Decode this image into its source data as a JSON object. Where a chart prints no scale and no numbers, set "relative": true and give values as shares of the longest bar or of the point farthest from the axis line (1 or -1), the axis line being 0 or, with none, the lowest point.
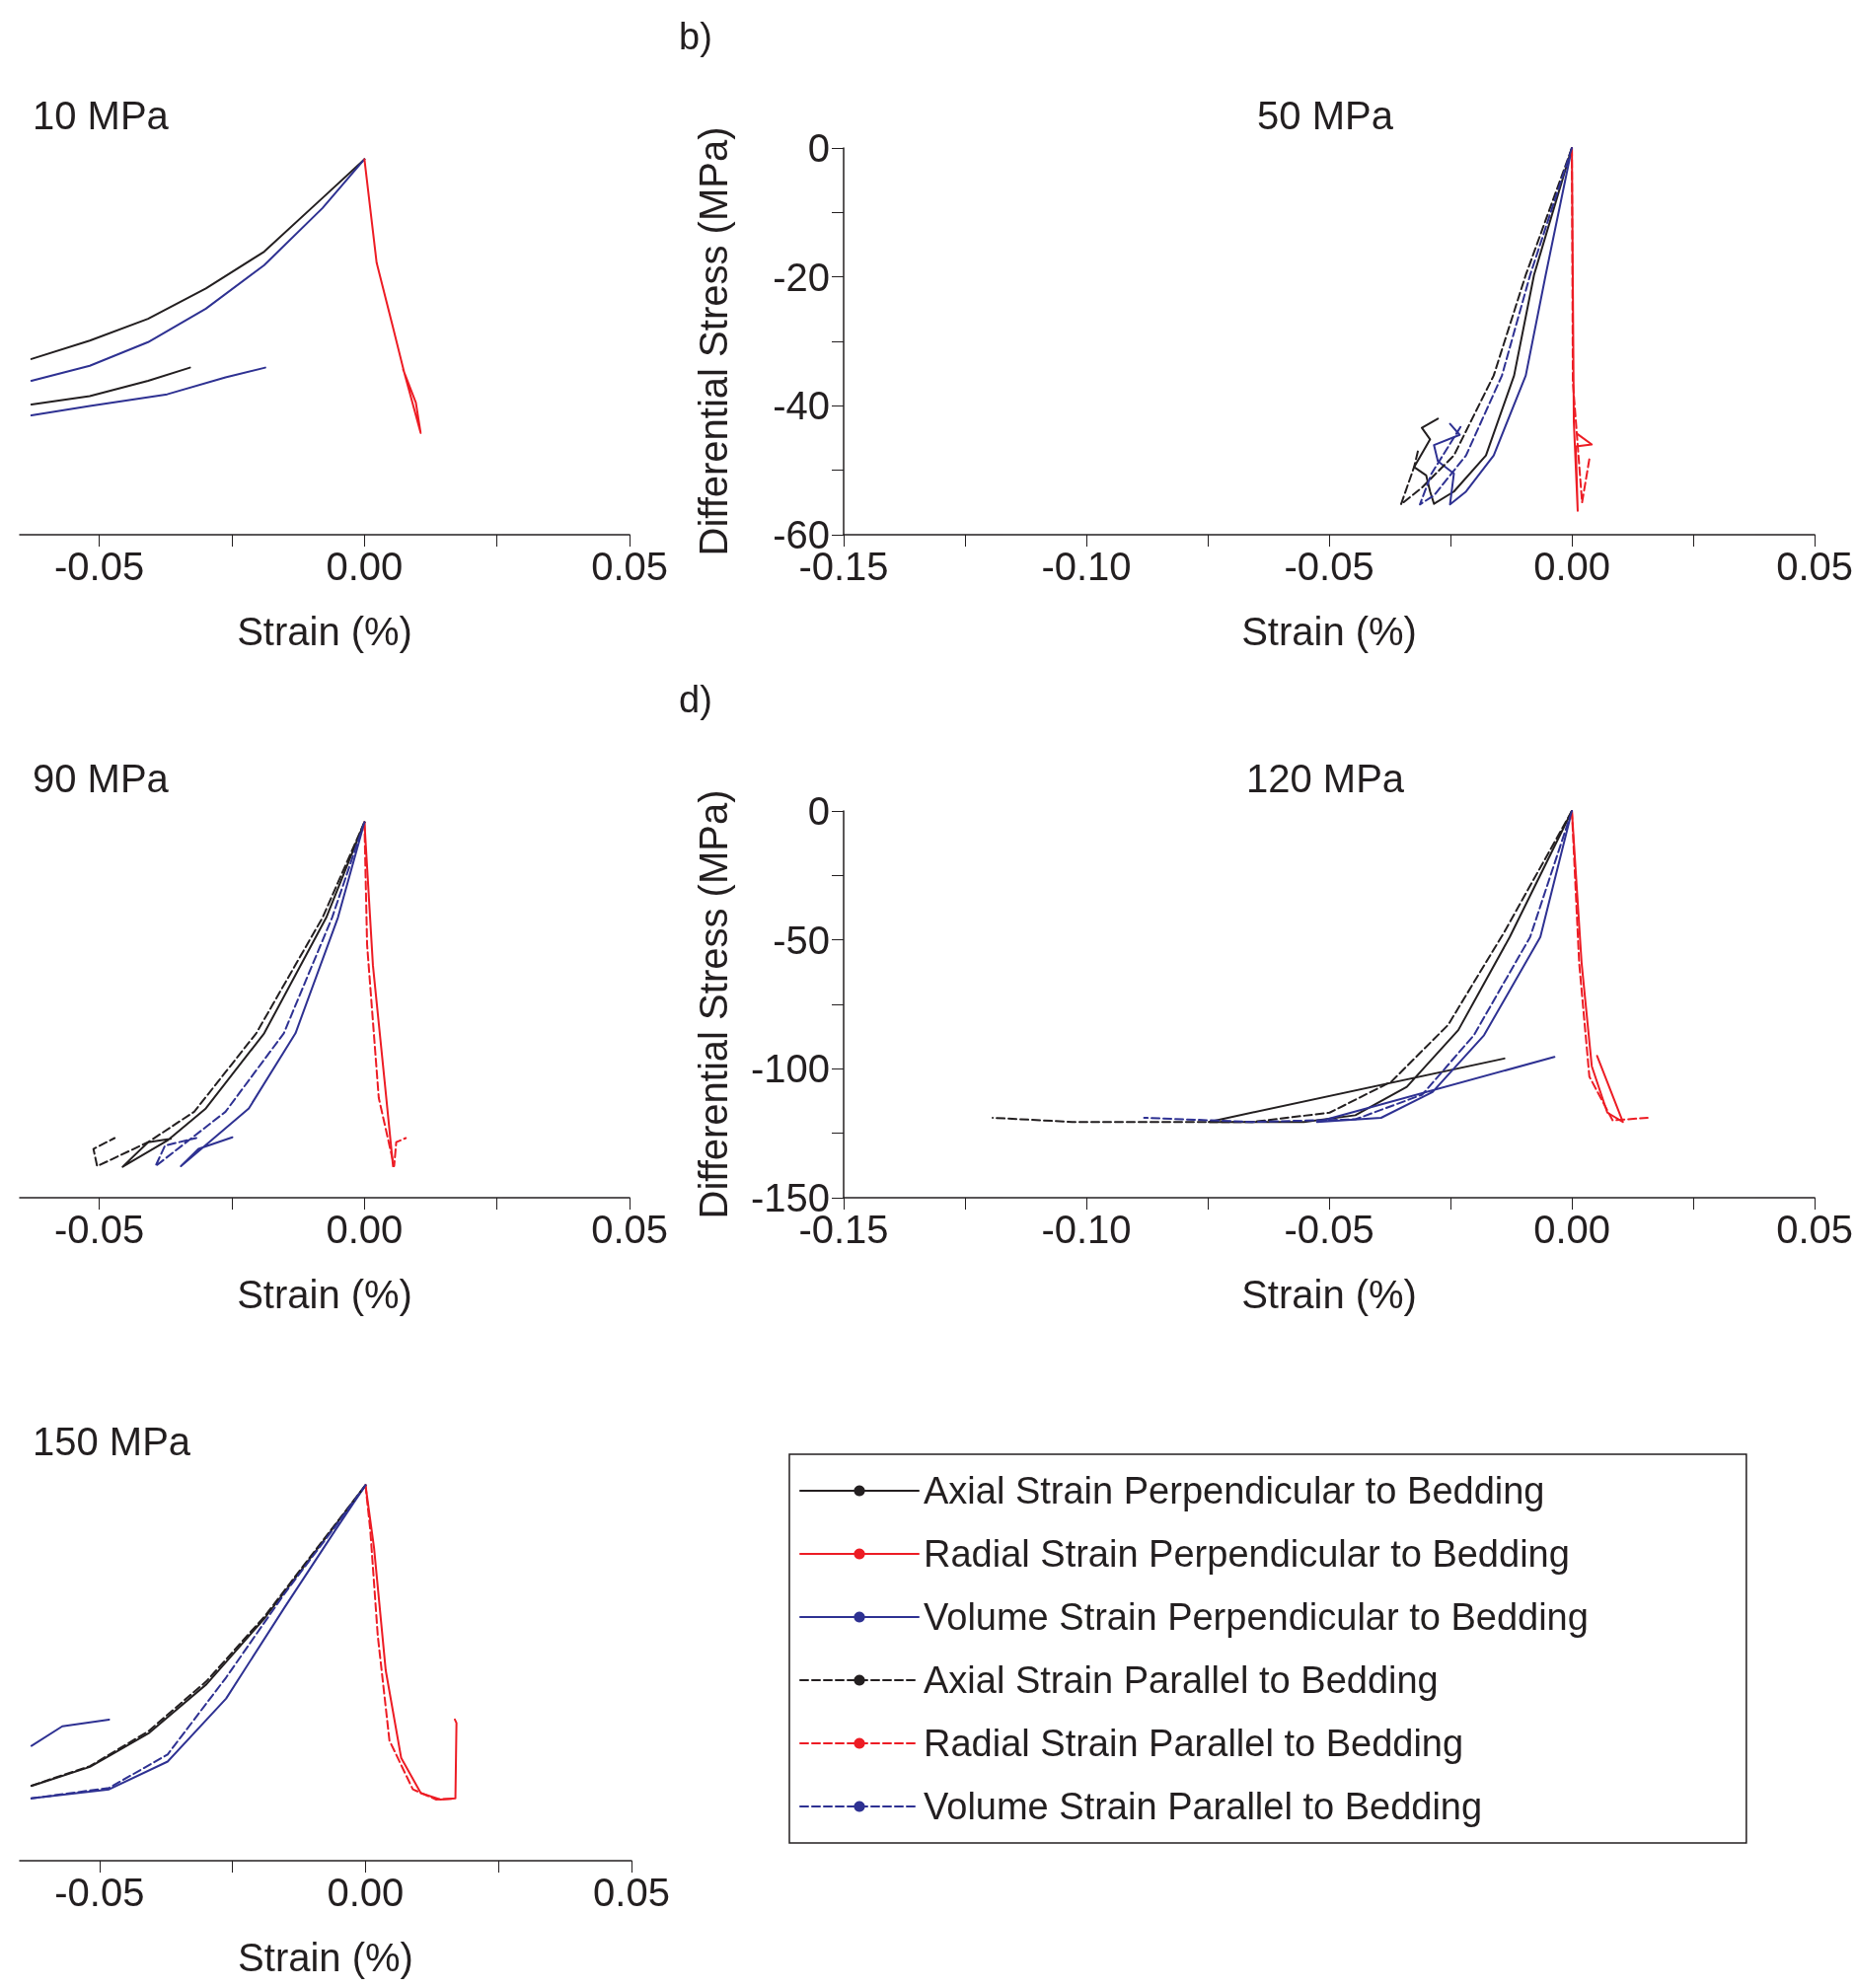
{
  "chart_data": [
    {
      "type": "line",
      "title": "10 MPa",
      "xlabel": "Strain (%)",
      "relative": true,
      "xlim": [
        -0.065,
        0.05
      ],
      "xticks": [
        -0.05,
        {
          "value": -0.025,
          "label": null
        },
        {
          "value": 0,
          "label": "0.00"
        },
        {
          "value": 0.025,
          "label": null
        },
        0.05
      ],
      "grid": false,
      "marker": "none",
      "series": [
        {
          "color": "#231f20",
          "line_style": "solid",
          "x": [
            -0.0329,
            -0.0408,
            -0.0518,
            -0.0628,
            null,
            -0.0628,
            -0.0518,
            -0.0408,
            -0.0299,
            -0.0189,
            -0.0079,
            0
          ],
          "values": [
            0.445,
            0.41,
            0.369,
            0.347,
            null,
            0.468,
            0.517,
            0.575,
            0.656,
            0.754,
            0.897,
            1
          ]
        },
        {
          "color": "#2e3192",
          "line_style": "solid",
          "x": [
            -0.0187,
            -0.0262,
            -0.0372,
            -0.0518,
            -0.0628,
            null,
            -0.0628,
            -0.0518,
            -0.0408,
            -0.0299,
            -0.0189,
            -0.0079,
            0
          ],
          "values": [
            0.445,
            0.419,
            0.374,
            0.343,
            0.318,
            null,
            0.41,
            0.45,
            0.513,
            0.602,
            0.718,
            0.87,
            1
          ]
        },
        {
          "color": "#ed1c24",
          "line_style": "solid",
          "x": [
            0,
            0.0023,
            0.0053,
            0.0075,
            0.0106,
            0.0097,
            0.0073
          ],
          "values": [
            1,
            0.7245,
            0.557,
            0.432,
            0.271,
            0.352,
            0.44
          ]
        }
      ]
    },
    {
      "type": "line",
      "title": "50 MPa",
      "xlabel": "Strain (%)",
      "ylabel": "Differential Stress (MPa)",
      "annotations": [
        "b)"
      ],
      "xlim": [
        -0.15,
        0.05
      ],
      "xticks": [
        -0.15,
        {
          "value": -0.125,
          "label": null
        },
        {
          "value": -0.1,
          "label": "-0.10"
        },
        {
          "value": -0.075,
          "label": null
        },
        -0.05,
        {
          "value": -0.025,
          "label": null
        },
        {
          "value": 0,
          "label": "0.00"
        },
        {
          "value": 0.025,
          "label": null
        },
        0.05
      ],
      "ylim": [
        -60,
        0
      ],
      "yticks": [
        -60,
        {
          "value": -50,
          "label": null
        },
        -40,
        {
          "value": -30,
          "label": null
        },
        -20,
        {
          "value": -10,
          "label": null
        },
        0
      ],
      "grid": false,
      "marker": "none",
      "series": [
        {
          "color": "#231f20",
          "line_style": "solid",
          "x": [
            0,
            -0.0078,
            -0.0119,
            -0.0177,
            -0.0243,
            -0.0284,
            -0.0292,
            -0.03,
            -0.0325,
            -0.0292,
            -0.0309,
            -0.0276
          ],
          "values": [
            0,
            -19.7,
            -35.3,
            -47.7,
            -53.3,
            -55.2,
            -53.3,
            -50.8,
            -49.5,
            -45.2,
            -43.4,
            -42
          ]
        },
        {
          "color": "#ed1c24",
          "line_style": "solid",
          "x": [
            0,
            0.0004,
            0.0012,
            0.0008,
            0.0041,
            0.0012
          ],
          "values": [
            0,
            -42.5,
            -56.3,
            -46.3,
            -46,
            -44.4
          ]
        },
        {
          "color": "#2e3192",
          "line_style": "solid",
          "x": [
            0,
            -0.0054,
            -0.0095,
            -0.0161,
            -0.0218,
            -0.0251,
            -0.0243,
            -0.0276,
            -0.0284,
            -0.0231,
            -0.0251
          ],
          "values": [
            0,
            -19.7,
            -35.3,
            -47.7,
            -53.3,
            -55.3,
            -50.5,
            -48.6,
            -46.1,
            -44.5,
            -42.8
          ]
        },
        {
          "color": "#231f20",
          "line_style": "dashed",
          "x": [
            0,
            -0.0095,
            -0.0161,
            -0.0243,
            -0.0309,
            -0.0352,
            -0.0325,
            -0.0317
          ],
          "values": [
            0,
            -19.7,
            -35.3,
            -47.7,
            -52.7,
            -55.3,
            -49.5,
            -47
          ]
        },
        {
          "color": "#ed1c24",
          "line_style": "dashed",
          "x": [
            0,
            0.0002,
            0.0021,
            0.0037
          ],
          "values": [
            0,
            -36.3,
            -55,
            -47.8
          ]
        },
        {
          "color": "#2e3192",
          "line_style": "dashed",
          "x": [
            0,
            -0.0086,
            -0.0144,
            -0.0218,
            -0.0284,
            -0.0313,
            -0.0289,
            -0.0227
          ],
          "values": [
            0,
            -19.7,
            -35.3,
            -47.7,
            -53.9,
            -55.3,
            -50.5,
            -43
          ]
        }
      ]
    },
    {
      "type": "line",
      "title": "90 MPa",
      "xlabel": "Strain (%)",
      "relative": true,
      "xlim": [
        -0.065,
        0.05
      ],
      "xticks": [
        -0.05,
        {
          "value": -0.025,
          "label": null
        },
        {
          "value": 0,
          "label": "0.00"
        },
        {
          "value": 0.025,
          "label": null
        },
        0.05
      ],
      "grid": false,
      "marker": "none",
      "series": [
        {
          "color": "#231f20",
          "line_style": "solid",
          "x": [
            0,
            -0.0072,
            -0.0189,
            -0.0299,
            -0.0372,
            -0.0456,
            -0.0408,
            -0.0365
          ],
          "values": [
            1,
            0.746,
            0.438,
            0.238,
            0.152,
            0.0825,
            0.148,
            0.157
          ]
        },
        {
          "color": "#ed1c24",
          "line_style": "solid",
          "x": [
            0,
            0.0016,
            0.0038,
            0.0054
          ],
          "values": [
            1,
            0.619,
            0.311,
            0.084
          ]
        },
        {
          "color": "#2e3192",
          "line_style": "solid",
          "x": [
            0,
            -0.005,
            -0.013,
            -0.0218,
            -0.0346,
            -0.0313,
            -0.0249
          ],
          "values": [
            1,
            0.746,
            0.438,
            0.238,
            0.084,
            0.13,
            0.161
          ]
        },
        {
          "color": "#231f20",
          "line_style": "dashed",
          "x": [
            0,
            -0.0079,
            -0.0204,
            -0.0321,
            -0.0408,
            -0.0504,
            -0.0511,
            -0.0471
          ],
          "values": [
            1,
            0.746,
            0.438,
            0.229,
            0.148,
            0.084,
            0.13,
            0.159
          ]
        },
        {
          "color": "#ed1c24",
          "line_style": "dashed",
          "x": [
            0,
            0.0005,
            0.0027,
            0.0056,
            0.006,
            0.0078
          ],
          "values": [
            1,
            0.674,
            0.266,
            0.084,
            0.148,
            0.159
          ]
        },
        {
          "color": "#2e3192",
          "line_style": "dashed",
          "x": [
            0,
            -0.0061,
            -0.0152,
            -0.0262,
            -0.0394,
            -0.0376,
            -0.0317
          ],
          "values": [
            1,
            0.746,
            0.438,
            0.229,
            0.084,
            0.139,
            0.159
          ]
        }
      ]
    },
    {
      "type": "line",
      "title": "120 MPa",
      "xlabel": "Strain (%)",
      "ylabel": "Differential Stress (MPa)",
      "annotations": [
        "d)"
      ],
      "xlim": [
        -0.15,
        0.05
      ],
      "xticks": [
        -0.15,
        {
          "value": -0.125,
          "label": null
        },
        {
          "value": -0.1,
          "label": "-0.10"
        },
        {
          "value": -0.075,
          "label": null
        },
        -0.05,
        {
          "value": -0.025,
          "label": null
        },
        {
          "value": 0,
          "label": "0.00"
        },
        {
          "value": 0.025,
          "label": null
        },
        0.05
      ],
      "ylim": [
        -150,
        0
      ],
      "yticks": [
        -150,
        {
          "value": -125,
          "label": null
        },
        -100,
        {
          "value": -75,
          "label": null
        },
        -50,
        {
          "value": -25,
          "label": null
        },
        0
      ],
      "grid": false,
      "marker": "none",
      "series": [
        {
          "color": "#231f20",
          "line_style": "solid",
          "x": [
            0,
            -0.0128,
            -0.0234,
            -0.034,
            -0.0446,
            -0.0552,
            -0.0748,
            -0.0139
          ],
          "values": [
            0,
            -48.9,
            -85,
            -107,
            -118,
            -120.6,
            -120.6,
            -96
          ]
        },
        {
          "color": "#ed1c24",
          "line_style": "solid",
          "x": [
            0,
            0.002,
            0.0041,
            0.0073,
            0.0105,
            0.0052
          ],
          "values": [
            0,
            -58.9,
            -99,
            -117,
            -120.6,
            -95
          ]
        },
        {
          "color": "#2e3192",
          "line_style": "solid",
          "x": [
            0,
            -0.0065,
            -0.0181,
            -0.0287,
            -0.0393,
            -0.0525,
            -0.0036
          ],
          "values": [
            0,
            -48.9,
            -87,
            -109,
            -119,
            -120.6,
            -95.4
          ]
        },
        {
          "color": "#231f20",
          "line_style": "dashed",
          "x": [
            0,
            -0.0139,
            -0.0255,
            -0.0372,
            -0.0499,
            -0.0658,
            -0.087,
            -0.1029,
            -0.1193
          ],
          "values": [
            0,
            -46.9,
            -83,
            -105,
            -117,
            -120.6,
            -120.6,
            -120.6,
            -119
          ]
        },
        {
          "color": "#ed1c24",
          "line_style": "dashed",
          "x": [
            0,
            0.0015,
            0.0036,
            0.0084,
            0.0156
          ],
          "values": [
            0,
            -58.9,
            -103,
            -120,
            -119
          ]
        },
        {
          "color": "#2e3192",
          "line_style": "dashed",
          "x": [
            0,
            -0.0086,
            -0.0202,
            -0.0308,
            -0.0446,
            -0.0658,
            -0.0881
          ],
          "values": [
            0,
            -48.9,
            -87,
            -110,
            -119.6,
            -120.6,
            -119
          ]
        }
      ]
    },
    {
      "type": "line",
      "title": "150 MPa",
      "xlabel": "Strain (%)",
      "relative": true,
      "xlim": [
        -0.065,
        0.05
      ],
      "xticks": [
        -0.05,
        {
          "value": -0.025,
          "label": null
        },
        {
          "value": 0,
          "label": "0.00"
        },
        {
          "value": 0.025,
          "label": null
        },
        0.05
      ],
      "grid": false,
      "marker": "none",
      "legend": "right",
      "series": [
        {
          "name": "Axial Strain Perpendicular to Bedding",
          "color": "#231f20",
          "line_style": "solid",
          "x": [
            -0.0628,
            -0.0518,
            -0.0408,
            -0.0299,
            -0.0189,
            -0.0079,
            0
          ],
          "values": [
            0.199,
            0.25,
            0.339,
            0.47,
            0.647,
            0.852,
            1
          ]
        },
        {
          "name": "Radial Strain Perpendicular to Bedding",
          "color": "#ed1c24",
          "line_style": "solid",
          "x": [
            0,
            0.0016,
            0.0038,
            0.0067,
            0.0104,
            0.0141,
            0.0169,
            0.0171,
            0.0168
          ],
          "values": [
            1,
            0.834,
            0.507,
            0.274,
            0.18,
            0.163,
            0.166,
            0.367,
            0.376
          ]
        },
        {
          "name": "Volume Strain Perpendicular to Bedding",
          "color": "#2e3192",
          "line_style": "solid",
          "x": [
            -0.0482,
            -0.057,
            -0.0628,
            null,
            -0.0628,
            -0.0482,
            -0.0372,
            -0.0262,
            -0.0152,
            -0.0057,
            0
          ],
          "values": [
            0.376,
            0.358,
            0.306,
            null,
            0.166,
            0.19,
            0.264,
            0.432,
            0.675,
            0.88,
            1
          ]
        },
        {
          "name": "Axial Strain Parallel to Bedding",
          "color": "#231f20",
          "line_style": "dashed",
          "x": [
            -0.0628,
            -0.0518,
            -0.0408,
            -0.0299,
            -0.0189,
            -0.0079,
            0
          ],
          "values": [
            0.2,
            0.252,
            0.345,
            0.478,
            0.652,
            0.855,
            1
          ]
        },
        {
          "name": "Radial Strain Parallel to Bedding",
          "color": "#ed1c24",
          "line_style": "dashed",
          "x": [
            0,
            0.0009,
            0.0023,
            0.0045,
            0.0089,
            0.0133,
            0.0162
          ],
          "values": [
            1,
            0.88,
            0.6,
            0.32,
            0.19,
            0.163,
            0.165
          ]
        },
        {
          "name": "Volume Strain Parallel to Bedding",
          "color": "#2e3192",
          "line_style": "dashed",
          "x": [
            -0.0628,
            -0.0482,
            -0.0372,
            -0.0262,
            -0.0152,
            -0.0057,
            0
          ],
          "values": [
            0.166,
            0.194,
            0.283,
            0.488,
            0.712,
            0.89,
            1
          ]
        }
      ]
    }
  ]
}
